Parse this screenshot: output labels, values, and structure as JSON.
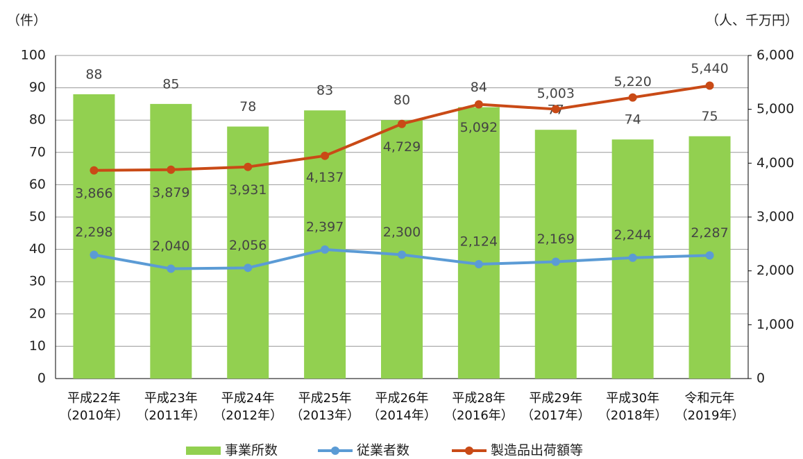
{
  "chart_data": {
    "type": "bar-line",
    "y_axis_label": "（件）",
    "y2_axis_label": "（人、千万円）",
    "categories": [
      "平成22年\n（2010年）",
      "平成23年\n（2011年）",
      "平成24年\n（2012年）",
      "平成25年\n（2013年）",
      "平成26年\n（2014年）",
      "平成28年\n（2016年）",
      "平成29年\n（2017年）",
      "平成30年\n（2018年）",
      "令和元年\n（2019年）"
    ],
    "series": [
      {
        "name": "事業所数",
        "type": "bar",
        "color": "#92d050",
        "values": [
          88,
          85,
          78,
          83,
          80,
          84,
          77,
          74,
          75
        ]
      },
      {
        "name": "従業者数",
        "type": "line",
        "axis": "y2",
        "color": "#5b9bd5",
        "values": [
          2298,
          2040,
          2056,
          2397,
          2300,
          2124,
          2169,
          2244,
          2287
        ],
        "value_labels": [
          "2,298",
          "2,040",
          "2,056",
          "2,397",
          "2,300",
          "2,124",
          "2,169",
          "2,244",
          "2,287"
        ]
      },
      {
        "name": "製造品出荷額等",
        "type": "line",
        "axis": "y2",
        "color": "#c94a16",
        "values": [
          3866,
          3879,
          3931,
          4137,
          4729,
          5092,
          5003,
          5220,
          5440
        ],
        "value_labels": [
          "3,866",
          "3,879",
          "3,931",
          "4,137",
          "4,729",
          "5,092",
          "5,003",
          "5,220",
          "5,440"
        ]
      }
    ],
    "ylim": [
      0,
      100
    ],
    "yticks": [
      0,
      10,
      20,
      30,
      40,
      50,
      60,
      70,
      80,
      90,
      100
    ],
    "y2lim": [
      0,
      6000
    ],
    "y2ticks": [
      0,
      {
        "value": 1000,
        "label": "1,000"
      },
      {
        "value": 2000,
        "label": "2,000"
      },
      {
        "value": 3000,
        "label": "3,000"
      },
      {
        "value": 4000,
        "label": "4,000"
      },
      {
        "value": 5000,
        "label": "5,000"
      },
      {
        "value": 6000,
        "label": "6,000"
      }
    ],
    "grid": true,
    "legend": "bottom"
  }
}
